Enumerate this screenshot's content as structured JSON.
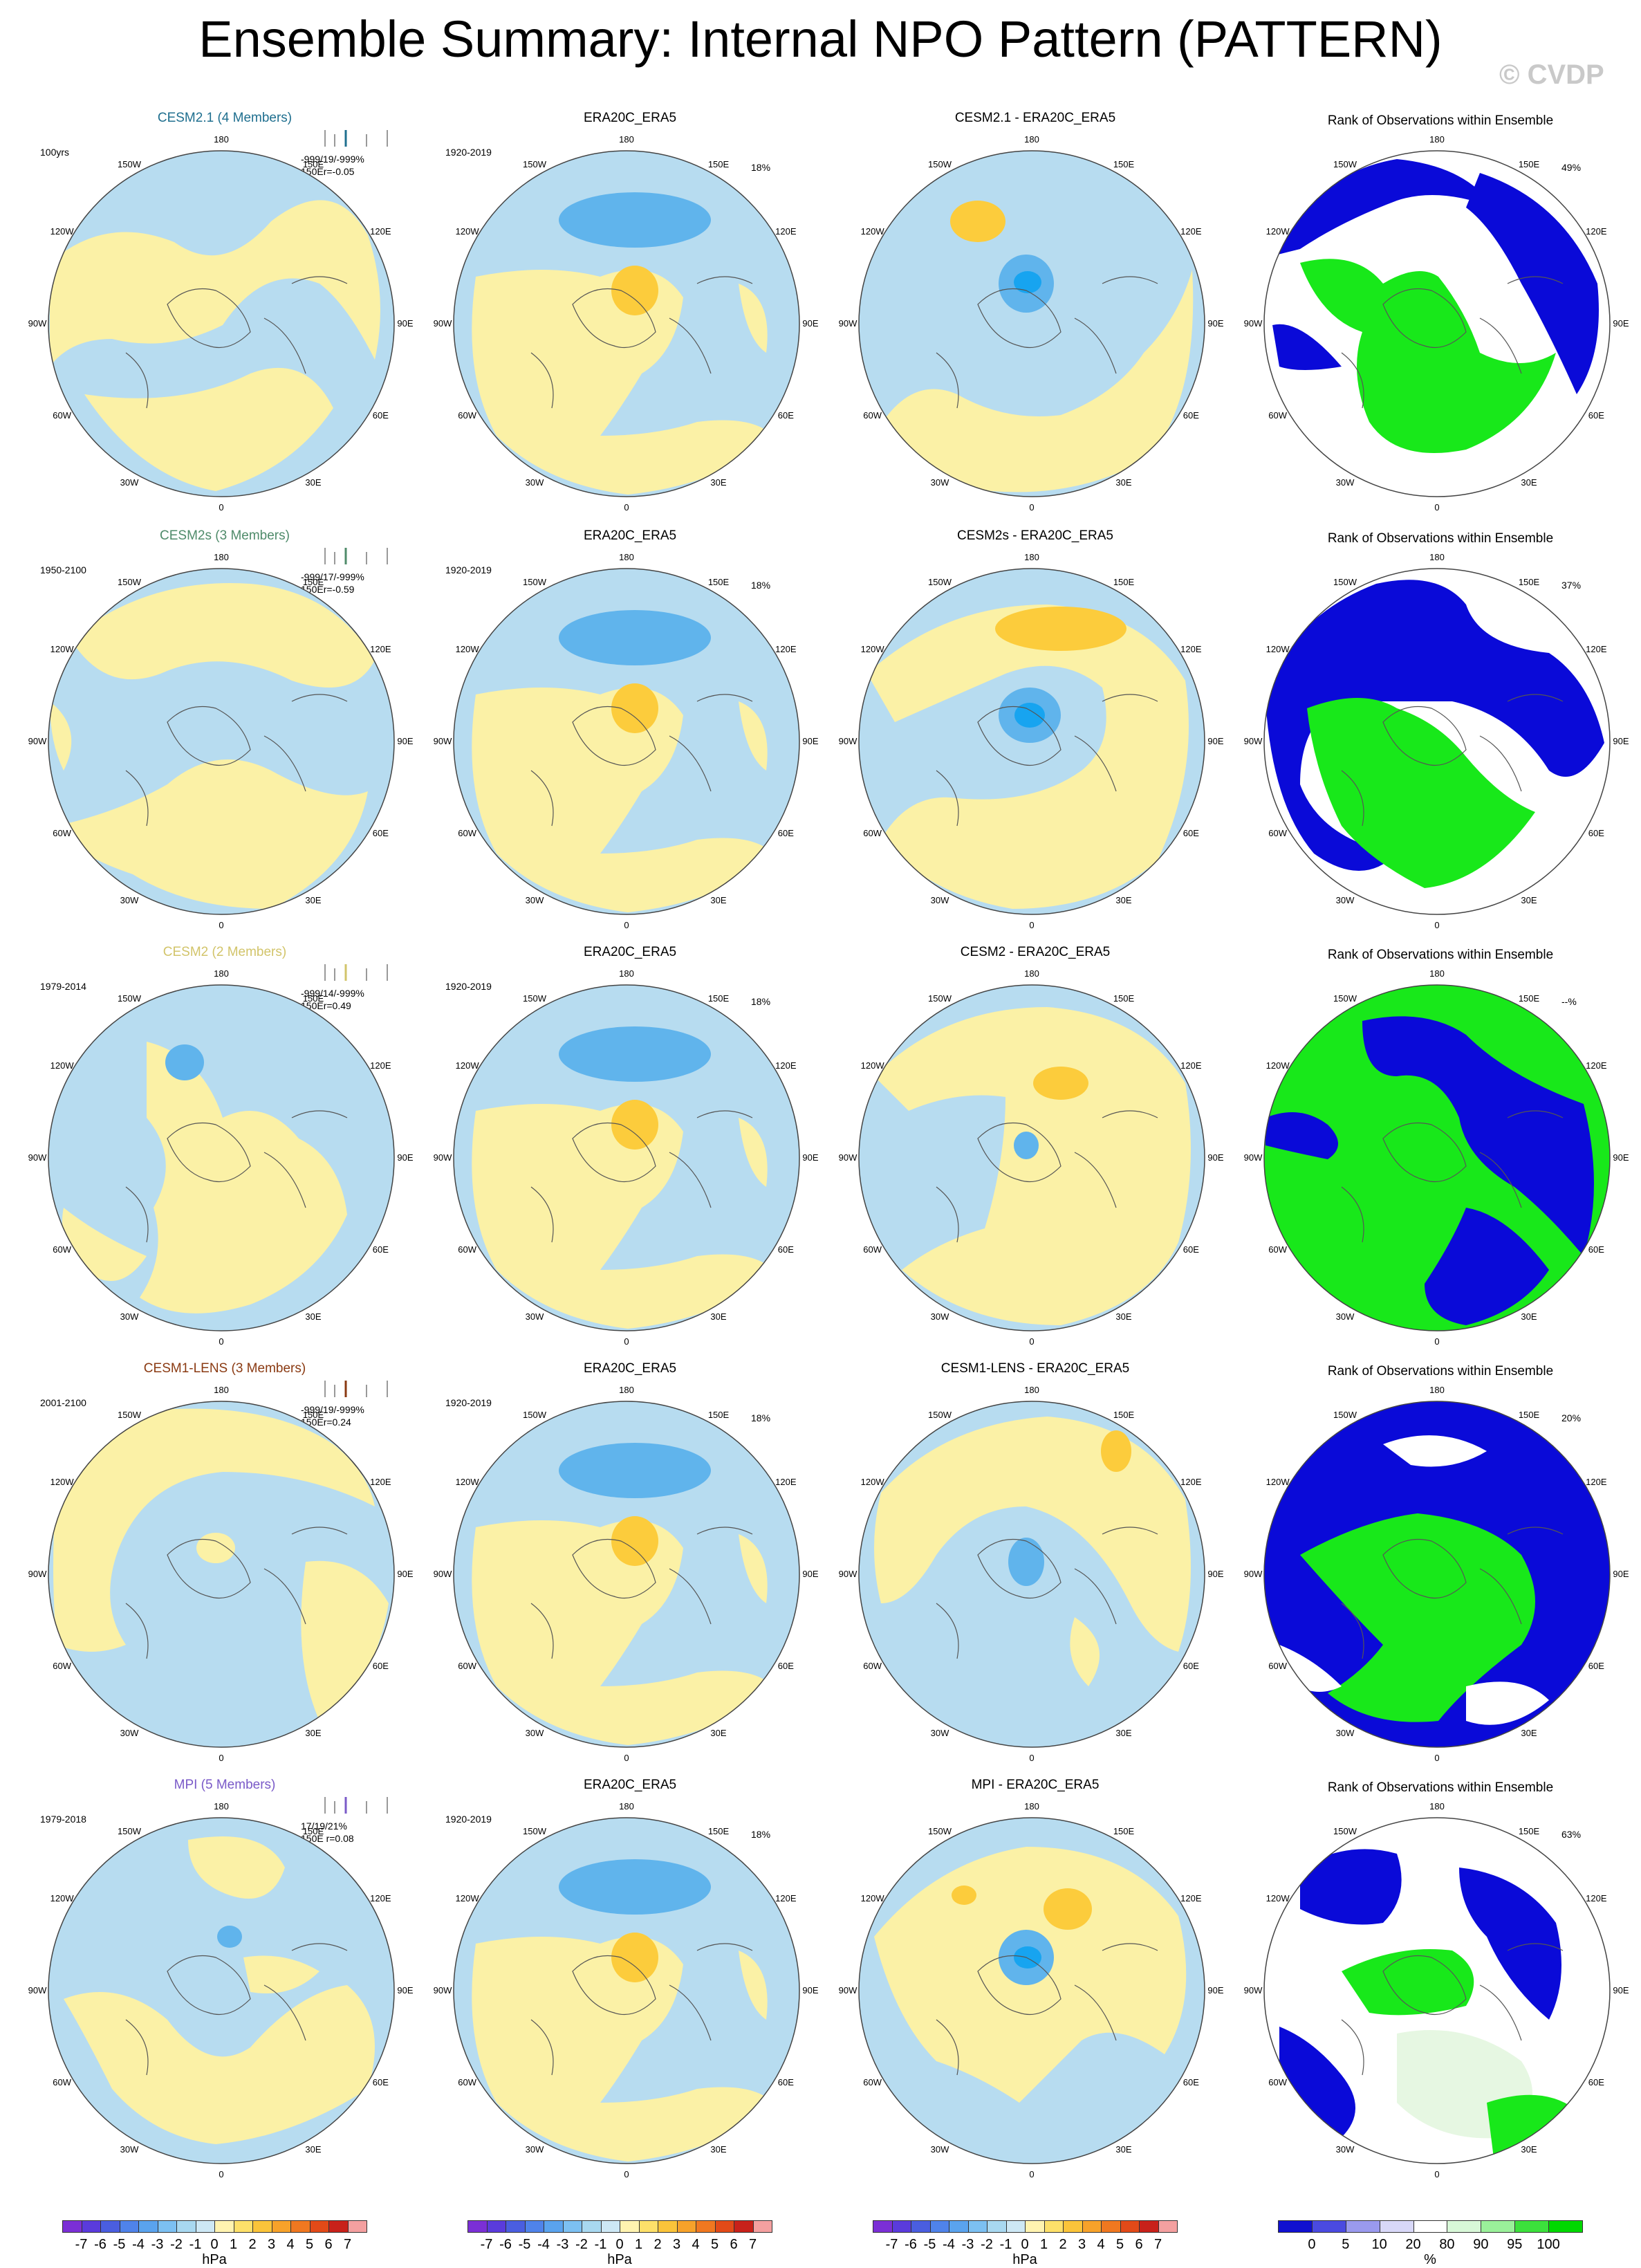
{
  "title": "Ensemble Summary: Internal NPO Pattern (PATTERN)",
  "watermark": "© CVDP",
  "lon_labels": [
    "180",
    "150E",
    "120E",
    "90E",
    "60E",
    "30E",
    "0",
    "30W",
    "60W",
    "90W",
    "120W",
    "150W"
  ],
  "rows": [
    {
      "model_title": "CESM2.1 (4 Members)",
      "model_color": "#1f6f8f",
      "period": "100yrs",
      "stats": "-999/19/-999%",
      "corr": "150Er=-0.05",
      "obs_title": "ERA20C_ERA5",
      "obs_period": "1920-2019",
      "obs_pct": "18%",
      "diff_title": "CESM2.1 - ERA20C_ERA5",
      "rank_title": "Rank of Observations within Ensemble",
      "rank_pct": "49%"
    },
    {
      "model_title": "CESM2s (3 Members)",
      "model_color": "#4f8b6a",
      "period": "1950-2100",
      "stats": "-999/17/-999%",
      "corr": "150Er=-0.59",
      "obs_title": "ERA20C_ERA5",
      "obs_period": "1920-2019",
      "obs_pct": "18%",
      "diff_title": "CESM2s - ERA20C_ERA5",
      "rank_title": "Rank of Observations within Ensemble",
      "rank_pct": "37%"
    },
    {
      "model_title": "CESM2 (2 Members)",
      "model_color": "#d2c46a",
      "period": "1979-2014",
      "stats": "-999/14/-999%",
      "corr": "150Er=0.49",
      "obs_title": "ERA20C_ERA5",
      "obs_period": "1920-2019",
      "obs_pct": "18%",
      "diff_title": "CESM2 - ERA20C_ERA5",
      "rank_title": "Rank of Observations within Ensemble",
      "rank_pct": "--%"
    },
    {
      "model_title": "CESM1-LENS (3 Members)",
      "model_color": "#8a3a12",
      "period": "2001-2100",
      "stats": "-999/19/-999%",
      "corr": "150Er=0.24",
      "obs_title": "ERA20C_ERA5",
      "obs_period": "1920-2019",
      "obs_pct": "18%",
      "diff_title": "CESM1-LENS - ERA20C_ERA5",
      "rank_title": "Rank of Observations within Ensemble",
      "rank_pct": "20%"
    },
    {
      "model_title": "MPI (5 Members)",
      "model_color": "#7a5ac8",
      "period": "1979-2018",
      "stats": "17/19/21%",
      "corr": "150E   r=0.08",
      "obs_title": "ERA20C_ERA5",
      "obs_period": "1920-2019",
      "obs_pct": "18%",
      "diff_title": "MPI - ERA20C_ERA5",
      "rank_title": "Rank of Observations within Ensemble",
      "rank_pct": "63%"
    }
  ],
  "colorbar_hpa": {
    "ticks": [
      "-7",
      "-6",
      "-5",
      "-4",
      "-3",
      "-2",
      "-1",
      "0",
      "1",
      "2",
      "3",
      "4",
      "5",
      "6",
      "7"
    ],
    "unit": "hPa",
    "colors": [
      "#7b2fd6",
      "#5a3bdc",
      "#4a5ee0",
      "#4f83ea",
      "#5aa3ee",
      "#7cc0f2",
      "#a8d8f0",
      "#cde8f5",
      "#fff3b0",
      "#fde06a",
      "#fbc43a",
      "#f7a22a",
      "#f07820",
      "#e24a18",
      "#c8211a",
      "#f4a0a0"
    ]
  },
  "colorbar_rank": {
    "ticks": [
      "0",
      "5",
      "10",
      "20",
      "80",
      "90",
      "95",
      "100"
    ],
    "unit": "%",
    "colors": [
      "#1010d0",
      "#4a4ae0",
      "#9a9aee",
      "#d8d8f8",
      "#ffffff",
      "#d8f8d8",
      "#9af09a",
      "#3ce03c",
      "#00d800"
    ]
  },
  "palette": {
    "blue_light": "#b7dcf0",
    "yellow_light": "#fbf1a6",
    "blue_mid": "#60b4ec",
    "blue_deep": "#17a4f0",
    "orange": "#fccc3c",
    "rank_blue": "#0a0ad8",
    "rank_green": "#18e81a",
    "rank_pale": "#e6f7e2"
  }
}
